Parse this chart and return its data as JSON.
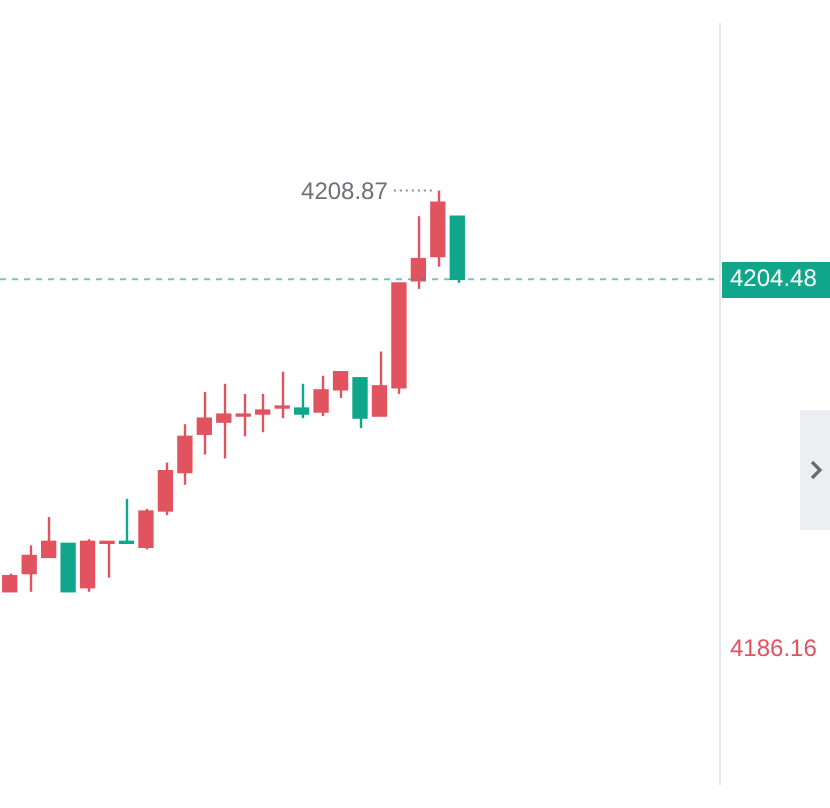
{
  "chart_data": {
    "type": "candlestick",
    "categories": [
      null,
      null,
      null,
      null,
      null,
      null,
      null,
      null,
      null,
      null,
      null,
      null,
      null,
      null,
      null,
      null,
      null,
      null,
      null,
      null,
      null,
      null,
      null,
      null,
      null,
      null,
      null,
      null,
      null,
      null,
      null,
      null,
      null,
      null,
      null,
      null,
      null
    ],
    "ohlc": [
      [
        4189.0,
        4189.9,
        4189.0,
        4189.8
      ],
      [
        4189.9,
        4191.3,
        4189.0,
        4190.8
      ],
      [
        4190.7,
        4192.7,
        4190.7,
        4191.5
      ],
      [
        4191.4,
        4191.4,
        4189.0,
        4189.0
      ],
      [
        4189.2,
        4191.6,
        4189.0,
        4191.5
      ],
      [
        4191.4,
        4191.5,
        4189.7,
        4191.5
      ],
      [
        4191.5,
        4193.6,
        4191.4,
        4191.4
      ],
      [
        4191.2,
        4193.1,
        4191.1,
        4193.0
      ],
      [
        4193.0,
        4195.4,
        4192.8,
        4195.0
      ],
      [
        4194.9,
        4197.3,
        4194.3,
        4196.7
      ],
      [
        4196.8,
        4198.9,
        4195.8,
        4197.6
      ],
      [
        4197.4,
        4199.3,
        4195.6,
        4197.8
      ],
      [
        4197.7,
        4198.8,
        4196.7,
        4197.8
      ],
      [
        4197.8,
        4198.8,
        4196.9,
        4198.0
      ],
      [
        4198.1,
        4199.9,
        4197.6,
        4198.2
      ],
      [
        4198.1,
        4199.3,
        4197.6,
        4197.8
      ],
      [
        4197.9,
        4199.7,
        4197.7,
        4199.0
      ],
      [
        4199.0,
        4199.9,
        4198.6,
        4199.9
      ],
      [
        4199.6,
        4199.6,
        4197.1,
        4197.6
      ],
      [
        4197.7,
        4200.9,
        4197.7,
        4199.2
      ],
      [
        4199.1,
        4204.3,
        4198.8,
        4204.3
      ],
      [
        4204.4,
        4207.6,
        4204.0,
        4205.5
      ],
      [
        4205.6,
        4208.87,
        4205.1,
        4208.3
      ],
      [
        4207.6,
        4207.6,
        4204.3,
        4204.48
      ],
      null,
      null,
      null,
      null,
      null,
      null,
      null,
      null,
      null,
      null,
      null,
      null,
      null
    ],
    "colors": [
      "#e0535f",
      "#e0535f",
      "#e0535f",
      "#0fa68b",
      "#e0535f",
      "#e0535f",
      "#0fa68b",
      "#e0535f",
      "#e0535f",
      "#e0535f",
      "#e0535f",
      "#e0535f",
      "#e0535f",
      "#e0535f",
      "#e0535f",
      "#0fa68b",
      "#e0535f",
      "#e0535f",
      "#0fa68b",
      "#e0535f",
      "#e0535f",
      "#e0535f",
      "#e0535f",
      "#0fa68b",
      null,
      null,
      null,
      null,
      null,
      null,
      null,
      null,
      null,
      null,
      null,
      null,
      null
    ],
    "ylim": [
      4179.5,
      4217.1
    ],
    "yticks": [
      4186.16,
      4204.48
    ],
    "tick_labels": "y",
    "grid": false,
    "legend": false,
    "ref_lines": [
      {
        "axis": "y",
        "value": 4204.48,
        "color": "#0fa68b",
        "line_style": "dashed"
      }
    ],
    "annotations": [
      "4208.87"
    ]
  }
}
